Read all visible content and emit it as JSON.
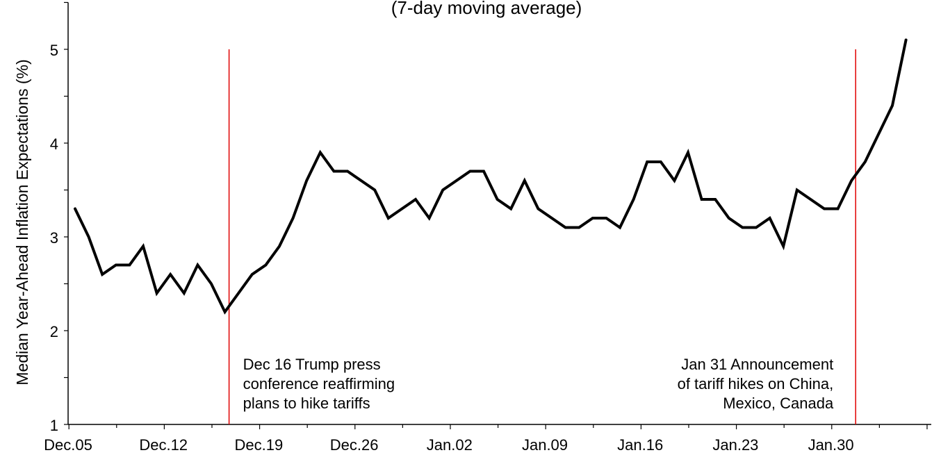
{
  "chart_data": {
    "type": "line",
    "title": "(7-day moving average)",
    "ylabel": "Median Year-Ahead Inflation Expectations (%)",
    "xlabel": "",
    "ylim": [
      1,
      5.5
    ],
    "y_ticks": [
      1,
      2,
      3,
      4,
      5
    ],
    "x_ticks": [
      "Dec.05",
      "Dec.12",
      "Dec.19",
      "Dec.26",
      "Jan.02",
      "Jan.09",
      "Jan.16",
      "Jan.23",
      "Jan.30"
    ],
    "x_start": "Dec.05",
    "line_color": "#000000",
    "event_color": "#e00000",
    "series": [
      {
        "x": [
          "Dec.05",
          "Dec.06",
          "Dec.07",
          "Dec.08",
          "Dec.09",
          "Dec.10",
          "Dec.11",
          "Dec.12",
          "Dec.13",
          "Dec.14",
          "Dec.15",
          "Dec.16",
          "Dec.17",
          "Dec.18",
          "Dec.19",
          "Dec.20",
          "Dec.21",
          "Dec.22",
          "Dec.23",
          "Dec.24",
          "Dec.25",
          "Dec.26",
          "Dec.27",
          "Dec.28",
          "Dec.29",
          "Dec.30",
          "Dec.31",
          "Jan.01",
          "Jan.02",
          "Jan.03",
          "Jan.04",
          "Jan.05",
          "Jan.06",
          "Jan.07",
          "Jan.08",
          "Jan.09",
          "Jan.10",
          "Jan.11",
          "Jan.12",
          "Jan.13",
          "Jan.14",
          "Jan.15",
          "Jan.16",
          "Jan.17",
          "Jan.18",
          "Jan.19",
          "Jan.20",
          "Jan.21",
          "Jan.22",
          "Jan.23",
          "Jan.24",
          "Jan.25",
          "Jan.26",
          "Jan.27",
          "Jan.28",
          "Jan.29",
          "Jan.30",
          "Jan.31",
          "Feb.01",
          "Feb.02",
          "Feb.03",
          "Feb.04"
        ],
        "values": [
          3.3,
          3.0,
          2.6,
          2.7,
          2.7,
          2.9,
          2.4,
          2.6,
          2.4,
          2.7,
          2.5,
          2.2,
          2.4,
          2.6,
          2.7,
          2.9,
          3.2,
          3.6,
          3.9,
          3.7,
          3.7,
          3.6,
          3.5,
          3.2,
          3.3,
          3.4,
          3.2,
          3.5,
          3.6,
          3.7,
          3.7,
          3.4,
          3.3,
          3.6,
          3.3,
          3.2,
          3.1,
          3.1,
          3.2,
          3.2,
          3.1,
          3.4,
          3.8,
          3.8,
          3.6,
          3.9,
          3.4,
          3.4,
          3.2,
          3.1,
          3.1,
          3.2,
          2.9,
          3.5,
          3.4,
          3.3,
          3.3,
          3.6,
          3.8,
          4.1,
          4.4,
          5.1
        ]
      }
    ],
    "events": [
      {
        "x": "Dec.16",
        "label_lines": [
          "Dec 16 Trump press",
          "conference reaffirming",
          "plans to hike tariffs"
        ],
        "label_side": "right"
      },
      {
        "x": "Jan.31",
        "label_lines": [
          "Jan 31 Announcement",
          "of tariff hikes on China,",
          "Mexico, Canada"
        ],
        "label_side": "left"
      }
    ]
  }
}
